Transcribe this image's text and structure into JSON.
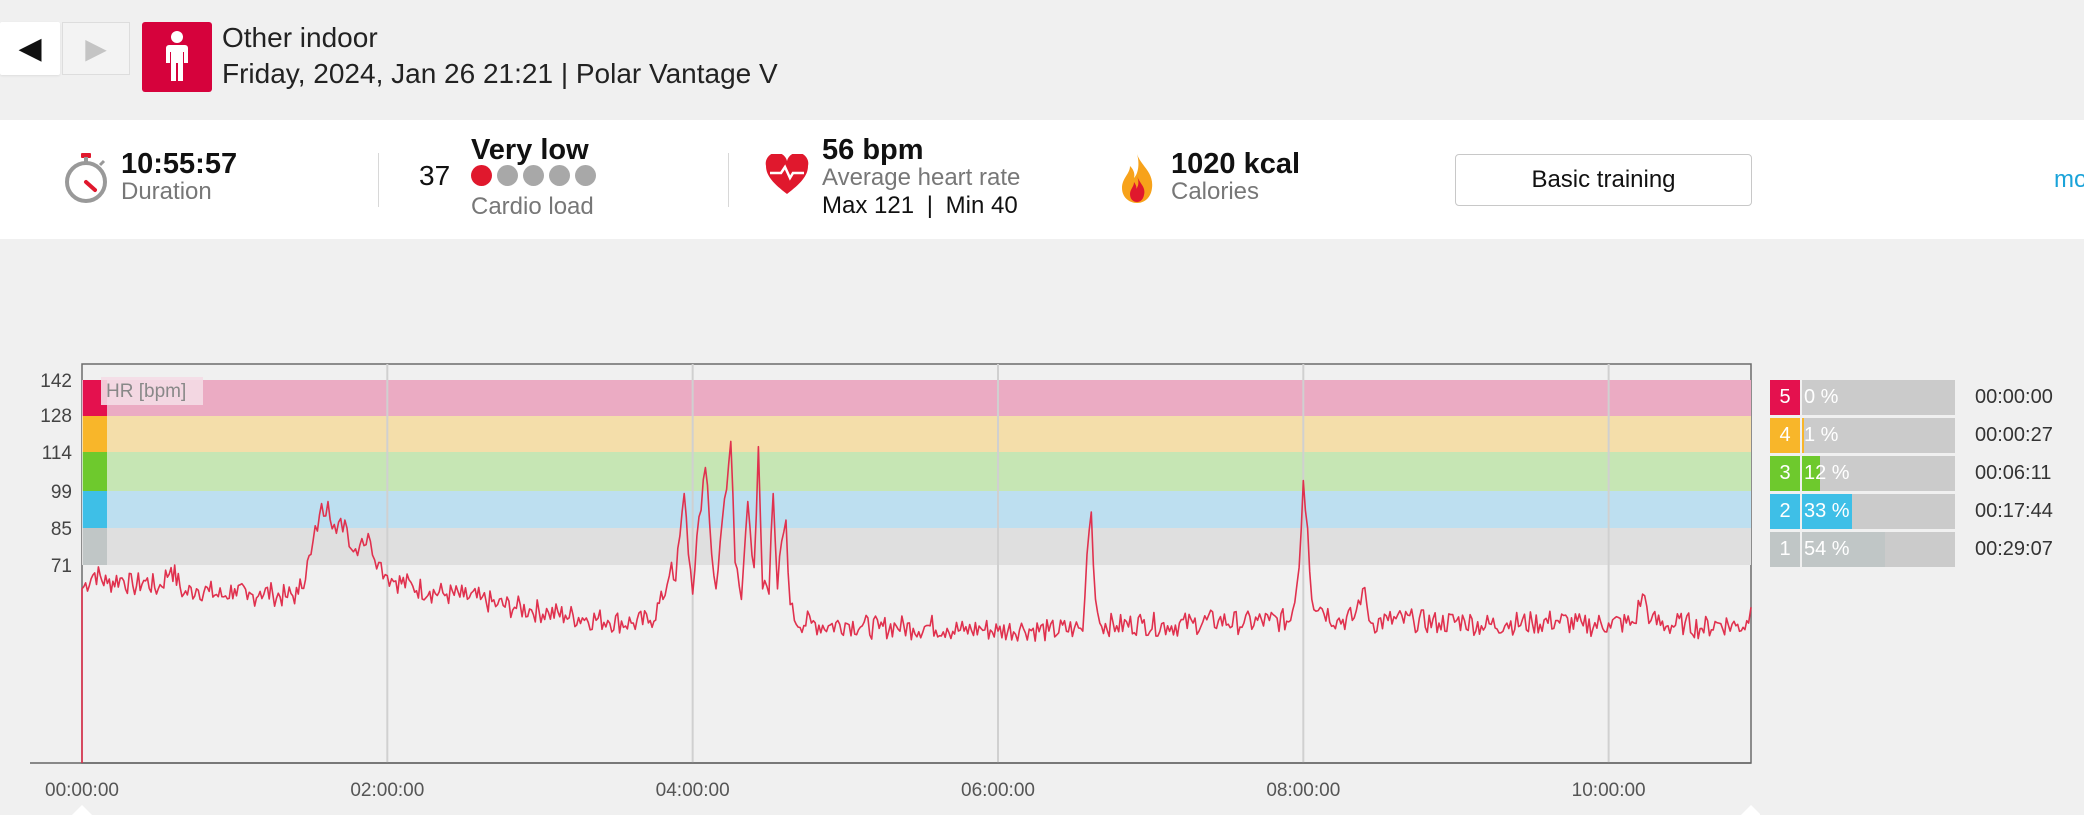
{
  "nav": {
    "back_glyph": "◀",
    "forward_glyph": "▶"
  },
  "header": {
    "sport_icon": "person-standing-icon",
    "title": "Other indoor",
    "subtitle": "Friday, 2024, Jan 26 21:21 | Polar Vantage V"
  },
  "summary": {
    "duration": {
      "value": "10:55:57",
      "label": "Duration",
      "icon": "stopwatch-icon"
    },
    "cardio": {
      "value": "37",
      "level": "Very low",
      "label": "Cardio load",
      "dots_filled": 1,
      "dots_total": 5
    },
    "heart": {
      "value": "56 bpm",
      "label": "Average heart rate",
      "max": "Max 121",
      "separator": "|",
      "min": "Min 40",
      "icon": "heart-icon"
    },
    "calories": {
      "value": "1020 kcal",
      "label": "Calories",
      "icon": "flame-icon"
    },
    "training_button": "Basic training",
    "more_link": "mo"
  },
  "colors": {
    "accent": "#d6023c",
    "line": "#e0314e",
    "zone5": "#e4114e",
    "zone4": "#f8b62a",
    "zone3": "#6ec92d",
    "zone2": "#3ebfe7",
    "zone1": "#c0c6c6"
  },
  "chart_data": {
    "type": "line",
    "legend_label": "HR [bpm]",
    "y_ticks": [
      "142",
      "128",
      "114",
      "99",
      "85",
      "71"
    ],
    "x_ticks": [
      "00:00:00",
      "02:00:00",
      "04:00:00",
      "06:00:00",
      "08:00:00",
      "10:00:00"
    ],
    "duration_seconds": 39357,
    "series": [
      {
        "points": [
          [
            0,
            62
          ],
          [
            300,
            68
          ],
          [
            600,
            64
          ],
          [
            900,
            66
          ],
          [
            1200,
            63
          ],
          [
            1500,
            65
          ],
          [
            1800,
            62
          ],
          [
            2100,
            70
          ],
          [
            2400,
            60
          ],
          [
            2700,
            62
          ],
          [
            3000,
            61
          ],
          [
            3300,
            59
          ],
          [
            3600,
            62
          ],
          [
            3900,
            58
          ],
          [
            4200,
            61
          ],
          [
            4500,
            60
          ],
          [
            4800,
            59
          ],
          [
            5100,
            60
          ],
          [
            5400,
            75
          ],
          [
            5600,
            90
          ],
          [
            5800,
            95
          ],
          [
            6000,
            83
          ],
          [
            6200,
            88
          ],
          [
            6400,
            76
          ],
          [
            6600,
            81
          ],
          [
            6800,
            80
          ],
          [
            7000,
            72
          ],
          [
            7200,
            67
          ],
          [
            7400,
            65
          ],
          [
            7800,
            63
          ],
          [
            8200,
            61
          ],
          [
            8600,
            60
          ],
          [
            9000,
            59
          ],
          [
            9400,
            58
          ],
          [
            9800,
            56
          ],
          [
            10200,
            55
          ],
          [
            10600,
            54
          ],
          [
            11000,
            53
          ],
          [
            11400,
            52
          ],
          [
            11800,
            51
          ],
          [
            12400,
            50
          ],
          [
            13000,
            49
          ],
          [
            13400,
            50
          ],
          [
            13700,
            58
          ],
          [
            13900,
            72
          ],
          [
            14000,
            65
          ],
          [
            14100,
            82
          ],
          [
            14200,
            98
          ],
          [
            14300,
            75
          ],
          [
            14400,
            60
          ],
          [
            14500,
            82
          ],
          [
            14700,
            108
          ],
          [
            14850,
            75
          ],
          [
            14950,
            62
          ],
          [
            15100,
            88
          ],
          [
            15300,
            118
          ],
          [
            15400,
            72
          ],
          [
            15550,
            58
          ],
          [
            15700,
            95
          ],
          [
            15850,
            70
          ],
          [
            15950,
            116
          ],
          [
            16050,
            62
          ],
          [
            16200,
            60
          ],
          [
            16300,
            98
          ],
          [
            16400,
            62
          ],
          [
            16500,
            80
          ],
          [
            16600,
            88
          ],
          [
            16700,
            56
          ],
          [
            16800,
            50
          ],
          [
            17200,
            49
          ],
          [
            17600,
            48
          ],
          [
            18000,
            49
          ],
          [
            18400,
            48
          ],
          [
            18800,
            47
          ],
          [
            19200,
            48
          ],
          [
            19600,
            47
          ],
          [
            20000,
            48
          ],
          [
            20400,
            47
          ],
          [
            20800,
            46
          ],
          [
            21200,
            47
          ],
          [
            21600,
            46
          ],
          [
            22200,
            47
          ],
          [
            22800,
            46
          ],
          [
            23400,
            47
          ],
          [
            23600,
            46
          ],
          [
            23700,
            75
          ],
          [
            23800,
            91
          ],
          [
            23900,
            58
          ],
          [
            24000,
            49
          ],
          [
            24400,
            48
          ],
          [
            25000,
            49
          ],
          [
            25600,
            48
          ],
          [
            26200,
            49
          ],
          [
            26800,
            50
          ],
          [
            27400,
            49
          ],
          [
            28000,
            50
          ],
          [
            28500,
            50
          ],
          [
            28700,
            70
          ],
          [
            28800,
            103
          ],
          [
            28900,
            85
          ],
          [
            29000,
            58
          ],
          [
            29200,
            55
          ],
          [
            29600,
            50
          ],
          [
            30000,
            51
          ],
          [
            30200,
            62
          ],
          [
            30400,
            49
          ],
          [
            30800,
            50
          ],
          [
            31400,
            50
          ],
          [
            32000,
            49
          ],
          [
            32600,
            50
          ],
          [
            33000,
            48
          ],
          [
            33600,
            49
          ],
          [
            34200,
            49
          ],
          [
            34800,
            50
          ],
          [
            35400,
            48
          ],
          [
            36000,
            49
          ],
          [
            36600,
            49
          ],
          [
            36800,
            60
          ],
          [
            37000,
            50
          ],
          [
            37400,
            48
          ],
          [
            37800,
            49
          ],
          [
            38200,
            47
          ],
          [
            38600,
            49
          ],
          [
            39000,
            48
          ],
          [
            39300,
            49
          ],
          [
            39357,
            55
          ]
        ]
      }
    ],
    "zones": [
      {
        "zone": "5",
        "percent": "0 %",
        "fraction": 0.0,
        "time": "00:00:00"
      },
      {
        "zone": "4",
        "percent": "1 %",
        "fraction": 0.01,
        "time": "00:00:27"
      },
      {
        "zone": "3",
        "percent": "12 %",
        "fraction": 0.12,
        "time": "00:06:11"
      },
      {
        "zone": "2",
        "percent": "33 %",
        "fraction": 0.33,
        "time": "00:17:44"
      },
      {
        "zone": "1",
        "percent": "54 %",
        "fraction": 0.54,
        "time": "00:29:07"
      }
    ]
  }
}
